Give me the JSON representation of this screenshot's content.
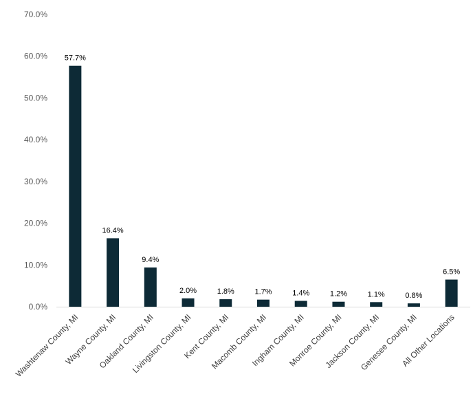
{
  "chart_data": {
    "type": "bar",
    "title": "",
    "xlabel": "",
    "ylabel": "",
    "categories": [
      "Washtenaw County, MI",
      "Wayne County, MI",
      "Oakland County, MI",
      "Livingston County, MI",
      "Kent County, MI",
      "Macomb County, MI",
      "Ingham County, MI",
      "Monroe County, MI",
      "Jackson County, MI",
      "Genesee County, MI",
      "All Other Locations"
    ],
    "values": [
      57.7,
      16.4,
      9.4,
      2.0,
      1.8,
      1.7,
      1.4,
      1.2,
      1.1,
      0.8,
      6.5
    ],
    "data_labels": [
      "57.7%",
      "16.4%",
      "9.4%",
      "2.0%",
      "1.8%",
      "1.7%",
      "1.4%",
      "1.2%",
      "1.1%",
      "0.8%",
      "6.5%"
    ],
    "ylim": [
      0,
      70
    ],
    "yticks": [
      0,
      10,
      20,
      30,
      40,
      50,
      60,
      70
    ],
    "ytick_labels": [
      "0.0%",
      "10.0%",
      "20.0%",
      "30.0%",
      "40.0%",
      "50.0%",
      "60.0%",
      "70.0%"
    ],
    "grid": false,
    "legend": "none",
    "bar_color": "#0d2a36",
    "axis_color": "#d9d9d9"
  }
}
